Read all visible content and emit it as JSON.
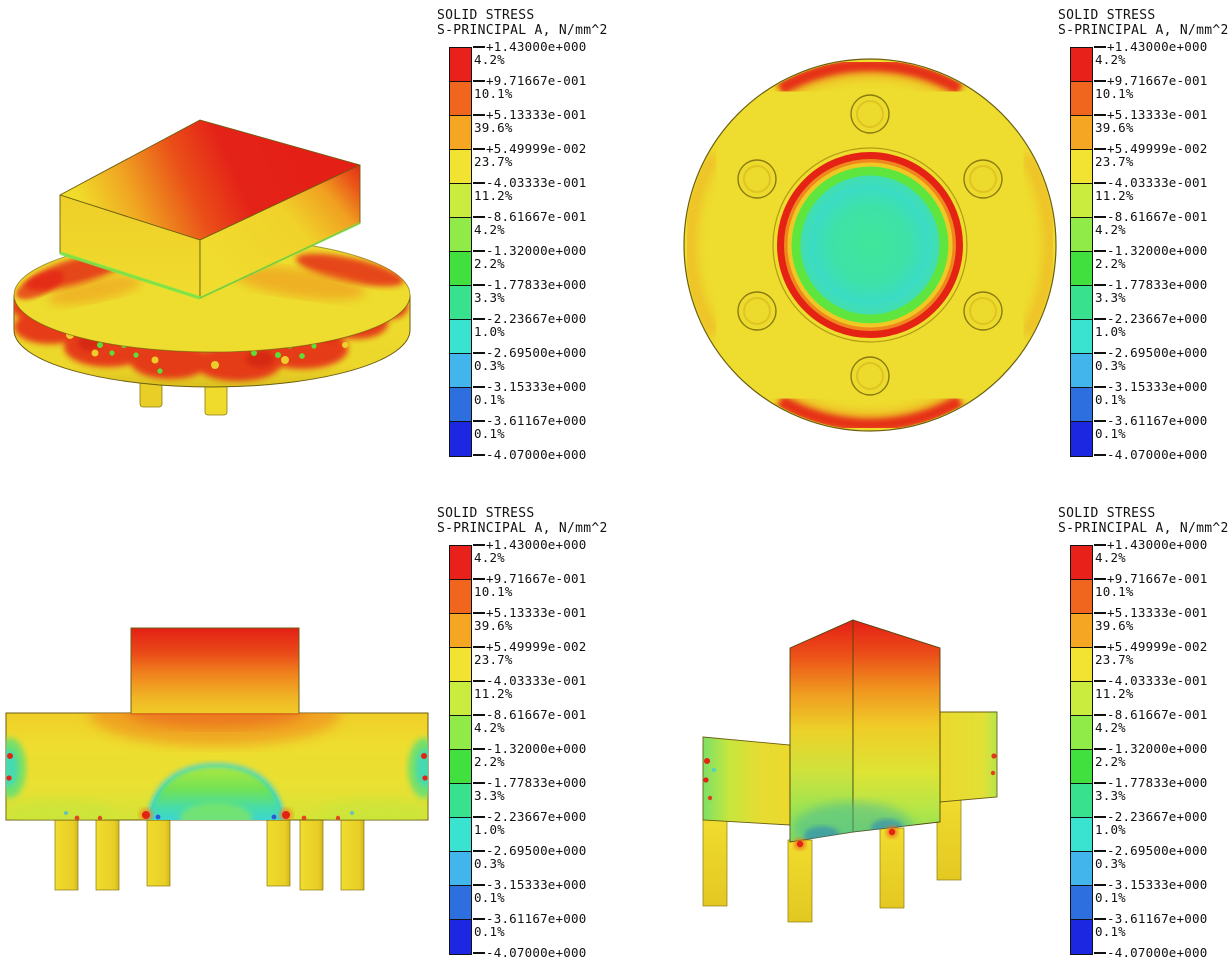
{
  "page": {
    "background": "#ffffff"
  },
  "legend": {
    "title_line1": "SOLID STRESS",
    "title_line2": "S-PRINCIPAL A, N/mm^2",
    "boundaries": [
      "+1.43000e+000",
      "+9.71667e-001",
      "+5.13333e-001",
      "+5.49999e-002",
      "-4.03333e-001",
      "-8.61667e-001",
      "-1.32000e+000",
      "-1.77833e+000",
      "-2.23667e+000",
      "-2.69500e+000",
      "-3.15333e+000",
      "-3.61167e+000",
      "-4.07000e+000"
    ],
    "bands": [
      {
        "percent": "4.2%",
        "color": "#e8211a"
      },
      {
        "percent": "10.1%",
        "color": "#f0661e"
      },
      {
        "percent": "39.6%",
        "color": "#f5a623"
      },
      {
        "percent": "23.7%",
        "color": "#f2e232"
      },
      {
        "percent": "11.2%",
        "color": "#c9ec3f"
      },
      {
        "percent": "4.2%",
        "color": "#90ea47"
      },
      {
        "percent": "2.2%",
        "color": "#41e03e"
      },
      {
        "percent": "3.3%",
        "color": "#38e18d"
      },
      {
        "percent": "1.0%",
        "color": "#3ae2d0"
      },
      {
        "percent": "0.3%",
        "color": "#42b5ec"
      },
      {
        "percent": "0.1%",
        "color": "#2e6fe0"
      },
      {
        "percent": "0.1%",
        "color": "#1c27e2"
      }
    ]
  },
  "colors": {
    "body_yellow": "#eedd2e",
    "stress_red": "#e42315",
    "stress_orange": "#f0861e",
    "stress_green": "#55e63a",
    "stress_cyan": "#3ad8d8",
    "stress_blue": "#2744dc",
    "edge_dark": "#6b5e10",
    "text": "#111111"
  },
  "chart_data": {
    "type": "heatmap",
    "title": "SOLID STRESS",
    "subtitle": "S-PRINCIPAL A, N/mm^2",
    "unit": "N/mm^2",
    "value_range": [
      -4.07,
      1.43
    ],
    "scale_boundaries": [
      1.43,
      0.971667,
      0.513333,
      0.0549999,
      -0.403333,
      -0.861667,
      -1.32,
      -1.77833,
      -2.23667,
      -2.695,
      -3.15333,
      -3.61167,
      -4.07
    ],
    "band_percentages": [
      4.2,
      10.1,
      39.6,
      23.7,
      11.2,
      4.2,
      2.2,
      3.3,
      1.0,
      0.3,
      0.1,
      0.1
    ],
    "band_colors": [
      "#e8211a",
      "#f0661e",
      "#f5a623",
      "#f2e232",
      "#c9ec3f",
      "#90ea47",
      "#41e03e",
      "#38e18d",
      "#3ae2d0",
      "#42b5ec",
      "#2e6fe0",
      "#1c27e2"
    ],
    "legend_position": "right-of-each-view",
    "views": [
      {
        "id": "isometric",
        "position": "top-left"
      },
      {
        "id": "plan-top",
        "position": "top-right"
      },
      {
        "id": "front-section",
        "position": "bottom-left"
      },
      {
        "id": "side-isometric",
        "position": "bottom-right"
      }
    ]
  }
}
